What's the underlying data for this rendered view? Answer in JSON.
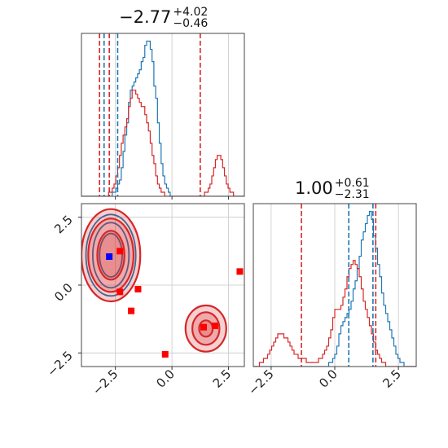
{
  "chart_data": [
    {
      "type": "histogram",
      "panel": "top-left",
      "title": {
        "value": "−2.77",
        "plus": "+4.02",
        "minus": "−0.46"
      },
      "xlim": [
        -4.0,
        3.2
      ],
      "bins_left": -4.0,
      "bin_width": 0.08,
      "series": [
        {
          "color": "#1f77b4",
          "counts": [
            0,
            0,
            0,
            0,
            0,
            0,
            0,
            0,
            0,
            0,
            0,
            0,
            0,
            0,
            0,
            0,
            0,
            1,
            1,
            2,
            3,
            4,
            7,
            11,
            15,
            18,
            23,
            26,
            27,
            28,
            29,
            30,
            31,
            33,
            34,
            37,
            38,
            38,
            36,
            33,
            27,
            24,
            18,
            13,
            8,
            5,
            3,
            2,
            1,
            0,
            0,
            0,
            0,
            0,
            0,
            0,
            0,
            0,
            0,
            0,
            0,
            0,
            0,
            0,
            0,
            0,
            0,
            0,
            0,
            0,
            0,
            0,
            0,
            0,
            0,
            0,
            0,
            0,
            0,
            0,
            0,
            0,
            0,
            0,
            0,
            0,
            0,
            0,
            0,
            0
          ]
        },
        {
          "color": "#d62728",
          "counts": [
            0,
            0,
            0,
            0,
            0,
            0,
            0,
            0,
            0,
            0,
            0,
            0,
            0,
            0,
            0,
            1,
            1,
            2,
            3,
            5,
            7,
            10,
            13,
            15,
            17,
            19,
            22,
            24,
            26,
            26,
            25,
            24,
            23,
            22,
            22,
            20,
            18,
            16,
            13,
            10,
            8,
            5,
            3,
            2,
            1,
            1,
            0,
            0,
            0,
            0,
            0,
            0,
            0,
            0,
            0,
            0,
            0,
            0,
            0,
            0,
            0,
            0,
            0,
            0,
            0,
            0,
            0,
            0,
            1,
            1,
            2,
            3,
            5,
            7,
            9,
            10,
            10,
            9,
            7,
            5,
            3,
            2,
            1,
            1,
            0,
            0,
            0,
            0,
            0,
            0
          ]
        }
      ],
      "vlines": [
        {
          "x": -3.2,
          "color": "#d62728"
        },
        {
          "x": -3.0,
          "color": "#1f77b4"
        },
        {
          "x": -2.77,
          "color": "#d62728"
        },
        {
          "x": -2.4,
          "color": "#1f77b4"
        },
        {
          "x": 1.25,
          "color": "#d62728"
        }
      ]
    },
    {
      "type": "scatter",
      "panel": "bottom-left",
      "xlim": [
        -4.0,
        3.2
      ],
      "ylim": [
        -3.0,
        3.0
      ],
      "xticks": [
        "−2.5",
        "0.0",
        "2.5"
      ],
      "yticks": [
        "2.5",
        "0.0",
        "−2.5"
      ],
      "xtick_values": [
        -2.5,
        0.0,
        2.5
      ],
      "ytick_values": [
        2.5,
        0.0,
        -2.5
      ],
      "red_points": [
        {
          "x": -2.3,
          "y": 1.25
        },
        {
          "x": -2.3,
          "y": -0.25
        },
        {
          "x": -1.5,
          "y": -0.15
        },
        {
          "x": -1.8,
          "y": -0.95
        },
        {
          "x": -0.3,
          "y": -2.55
        },
        {
          "x": 1.4,
          "y": -1.55
        },
        {
          "x": 1.9,
          "y": -1.5
        },
        {
          "x": 3.0,
          "y": 0.5
        }
      ],
      "blue_points": [
        {
          "x": -2.77,
          "y": 1.05
        }
      ],
      "contours": [
        {
          "cx": -2.7,
          "cy": 1.1,
          "rx": 1.1,
          "ry": 1.5,
          "color": "#1f77b4"
        },
        {
          "cx": -2.7,
          "cy": 1.1,
          "rx": 0.8,
          "ry": 1.2,
          "color": "#1f77b4"
        },
        {
          "cx": -2.7,
          "cy": 1.1,
          "rx": 0.5,
          "ry": 0.8,
          "color": "#1f77b4"
        },
        {
          "cx": -2.7,
          "cy": 1.1,
          "rx": 1.3,
          "ry": 1.7,
          "color": "#d62728"
        },
        {
          "cx": -2.7,
          "cy": 1.1,
          "rx": 1.0,
          "ry": 1.35,
          "color": "#d62728"
        },
        {
          "cx": -2.7,
          "cy": 1.1,
          "rx": 0.6,
          "ry": 0.9,
          "color": "#d62728"
        },
        {
          "cx": 1.5,
          "cy": -1.6,
          "rx": 0.9,
          "ry": 0.85,
          "color": "#d62728"
        },
        {
          "cx": 1.5,
          "cy": -1.6,
          "rx": 0.6,
          "ry": 0.6,
          "color": "#d62728"
        },
        {
          "cx": 1.5,
          "cy": -1.6,
          "rx": 0.3,
          "ry": 0.3,
          "color": "#d62728"
        }
      ]
    },
    {
      "type": "histogram",
      "panel": "bottom-right",
      "title": {
        "value": "1.00",
        "plus": "+0.61",
        "minus": "−2.31"
      },
      "xlim": [
        -3.2,
        3.2
      ],
      "bins_left": -3.2,
      "bin_width": 0.08,
      "xticks": [
        "−2.5",
        "0.0",
        "2.5"
      ],
      "xtick_values": [
        -2.5,
        0.0,
        2.5
      ],
      "series": [
        {
          "color": "#1f77b4",
          "counts": [
            0,
            0,
            0,
            0,
            0,
            0,
            0,
            0,
            0,
            0,
            0,
            0,
            0,
            0,
            0,
            0,
            0,
            0,
            0,
            0,
            0,
            0,
            0,
            0,
            0,
            0,
            0,
            0,
            0,
            0,
            0,
            0,
            0,
            0,
            0,
            0,
            0,
            1,
            1,
            2,
            3,
            5,
            8,
            10,
            11,
            12,
            13,
            14,
            16,
            19,
            21,
            24,
            27,
            31,
            33,
            35,
            37,
            38,
            36,
            32,
            29,
            25,
            22,
            18,
            15,
            13,
            11,
            9,
            7,
            5,
            3,
            2,
            1,
            1,
            0,
            0,
            0,
            0,
            0,
            0
          ]
        },
        {
          "color": "#d62728",
          "counts": [
            0,
            0,
            0,
            1,
            1,
            2,
            2,
            3,
            4,
            5,
            6,
            7,
            8,
            8,
            8,
            7,
            7,
            6,
            5,
            4,
            3,
            3,
            2,
            2,
            2,
            2,
            1,
            1,
            1,
            1,
            1,
            1,
            2,
            2,
            3,
            4,
            5,
            7,
            9,
            12,
            14,
            14,
            14,
            15,
            17,
            19,
            22,
            24,
            25,
            26,
            25,
            24,
            22,
            19,
            16,
            14,
            12,
            10,
            8,
            6,
            4,
            3,
            2,
            1,
            1,
            0,
            0,
            0,
            0,
            0,
            0,
            0,
            0,
            0,
            0,
            0,
            0,
            0,
            0,
            0
          ]
        }
      ],
      "vlines": [
        {
          "x": -1.31,
          "color": "#d62728"
        },
        {
          "x": 0.55,
          "color": "#1f77b4"
        },
        {
          "x": 1.5,
          "color": "#1f77b4"
        },
        {
          "x": 1.61,
          "color": "#d62728"
        }
      ]
    }
  ]
}
